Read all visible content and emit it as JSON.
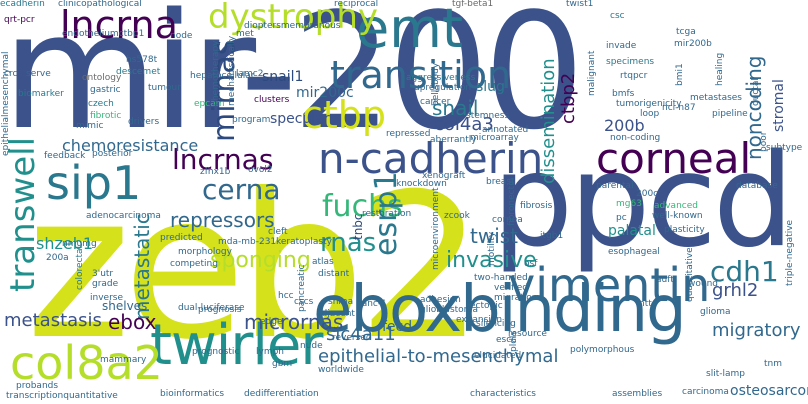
{
  "palette": {
    "navy": "#3b528b",
    "darknavy": "#2d4a7f",
    "purple": "#440154",
    "blue": "#31688e",
    "teal": "#21908d",
    "cyan": "#2a788e",
    "green": "#35b779",
    "lime": "#b5de2b",
    "yellow": "#d5e21b",
    "grey": "#6a6a6a"
  },
  "words": [
    "mir-200",
    "zeb2",
    "ppcd",
    "eboxbinding",
    "emt",
    "twirler",
    "vimentin",
    "n-cadherin",
    "corneal",
    "transition",
    "sip1",
    "col8a2",
    "lncrna",
    "dystrophy",
    "ctbp",
    "mirnas",
    "lncrnas",
    "fuchs",
    "cerna",
    "transwell",
    "esrp1",
    "cdh1",
    "rnas",
    "twist",
    "invasive",
    "sponging",
    "metastatic",
    "micrornas",
    "ebox",
    "metastasis",
    "epithelial-to-mesenchymal",
    "slc4a11",
    "migratory",
    "grhl2",
    "repressors",
    "chemoresistance",
    "shzeb1",
    "snail",
    "col4a3",
    "mir200c",
    "noncoding",
    "200b",
    "dissemination",
    "ctbp2",
    "slug",
    "snail1",
    "specular",
    "fecd",
    "palatal",
    "tnbc",
    "stromal",
    "ecadherin",
    "clinicopathological",
    "qrt-pcr",
    "endotheliumctbp1",
    "biomarker",
    "ontology",
    "hs578t",
    "descemet",
    "czech",
    "tumour",
    "fibrotic",
    "drivers",
    "feedback",
    "posterior",
    "epcam",
    "mechanistically",
    "chemotherapy",
    "hepatocellular",
    "clusters",
    "aggressiveness",
    "upregulation",
    "reciprocal",
    "tgf-beta1",
    "twist1",
    "csc",
    "tcga",
    "mir200b",
    "invade",
    "specimens",
    "rtqpcr",
    "bmfs",
    "nci-n87",
    "loop",
    "non-coding",
    "parental",
    "200c",
    "database",
    "advanced",
    "well-known",
    "plasticity",
    "pc",
    "mg63",
    "triple-negative",
    "mda-mb-231",
    "nmumg",
    "200a",
    "3'utr",
    "grade",
    "colorectal",
    "inverse",
    "shelves",
    "competing",
    "morphology",
    "predicted",
    "adenocarcinoma",
    "epithelialmesenchymal",
    "zfhx1b",
    "ovol2",
    "keratoplasty",
    "cleft",
    "atlas",
    "distant",
    "pancreatic",
    "hcc",
    "cscs",
    "panc-1",
    "adjacent",
    "shrna",
    "prognosis",
    "adhesion",
    "glioblastoma",
    "two-handed",
    "migration",
    "verified",
    "microenvironment",
    "itgb1",
    "fibronectin",
    "stemness",
    "annotated",
    "repressed",
    "breast",
    "esophageal",
    "glioma",
    "resource",
    "polymorphous",
    "mammary",
    "dual-luciferase",
    "prognostic",
    "edge",
    "lymph",
    "nude",
    "reversed",
    "worldwide",
    "silencing",
    "escc",
    "gbm",
    "probands",
    "transcriptionquantitative",
    "bioinformatics",
    "dedifferentiation",
    "characteristics",
    "osteosarcoma",
    "assemblies",
    "carcinoma",
    "slit-lamp",
    "tnm",
    "crc",
    "serve",
    "gastric",
    "mimic",
    "lamc2",
    "node",
    "met",
    "dioptersmembranous",
    "program",
    "tumorigenicity",
    "metastases",
    "malignant",
    "bmi1",
    "healing",
    "subtype",
    "poor",
    "cancer",
    "motility",
    "ectopic",
    "osf",
    "pldls",
    "elucidated",
    "quantitative",
    "mtt",
    "wound",
    "auft",
    "ductal",
    "pipeline",
    "bellsbody",
    "aberrantly",
    "xenograft",
    "knockdown",
    "restoration",
    "microarray",
    "cornea",
    "fibrosis",
    "zcook",
    "expansion",
    "stage",
    "rkcl",
    "tumoursuppressive"
  ]
}
